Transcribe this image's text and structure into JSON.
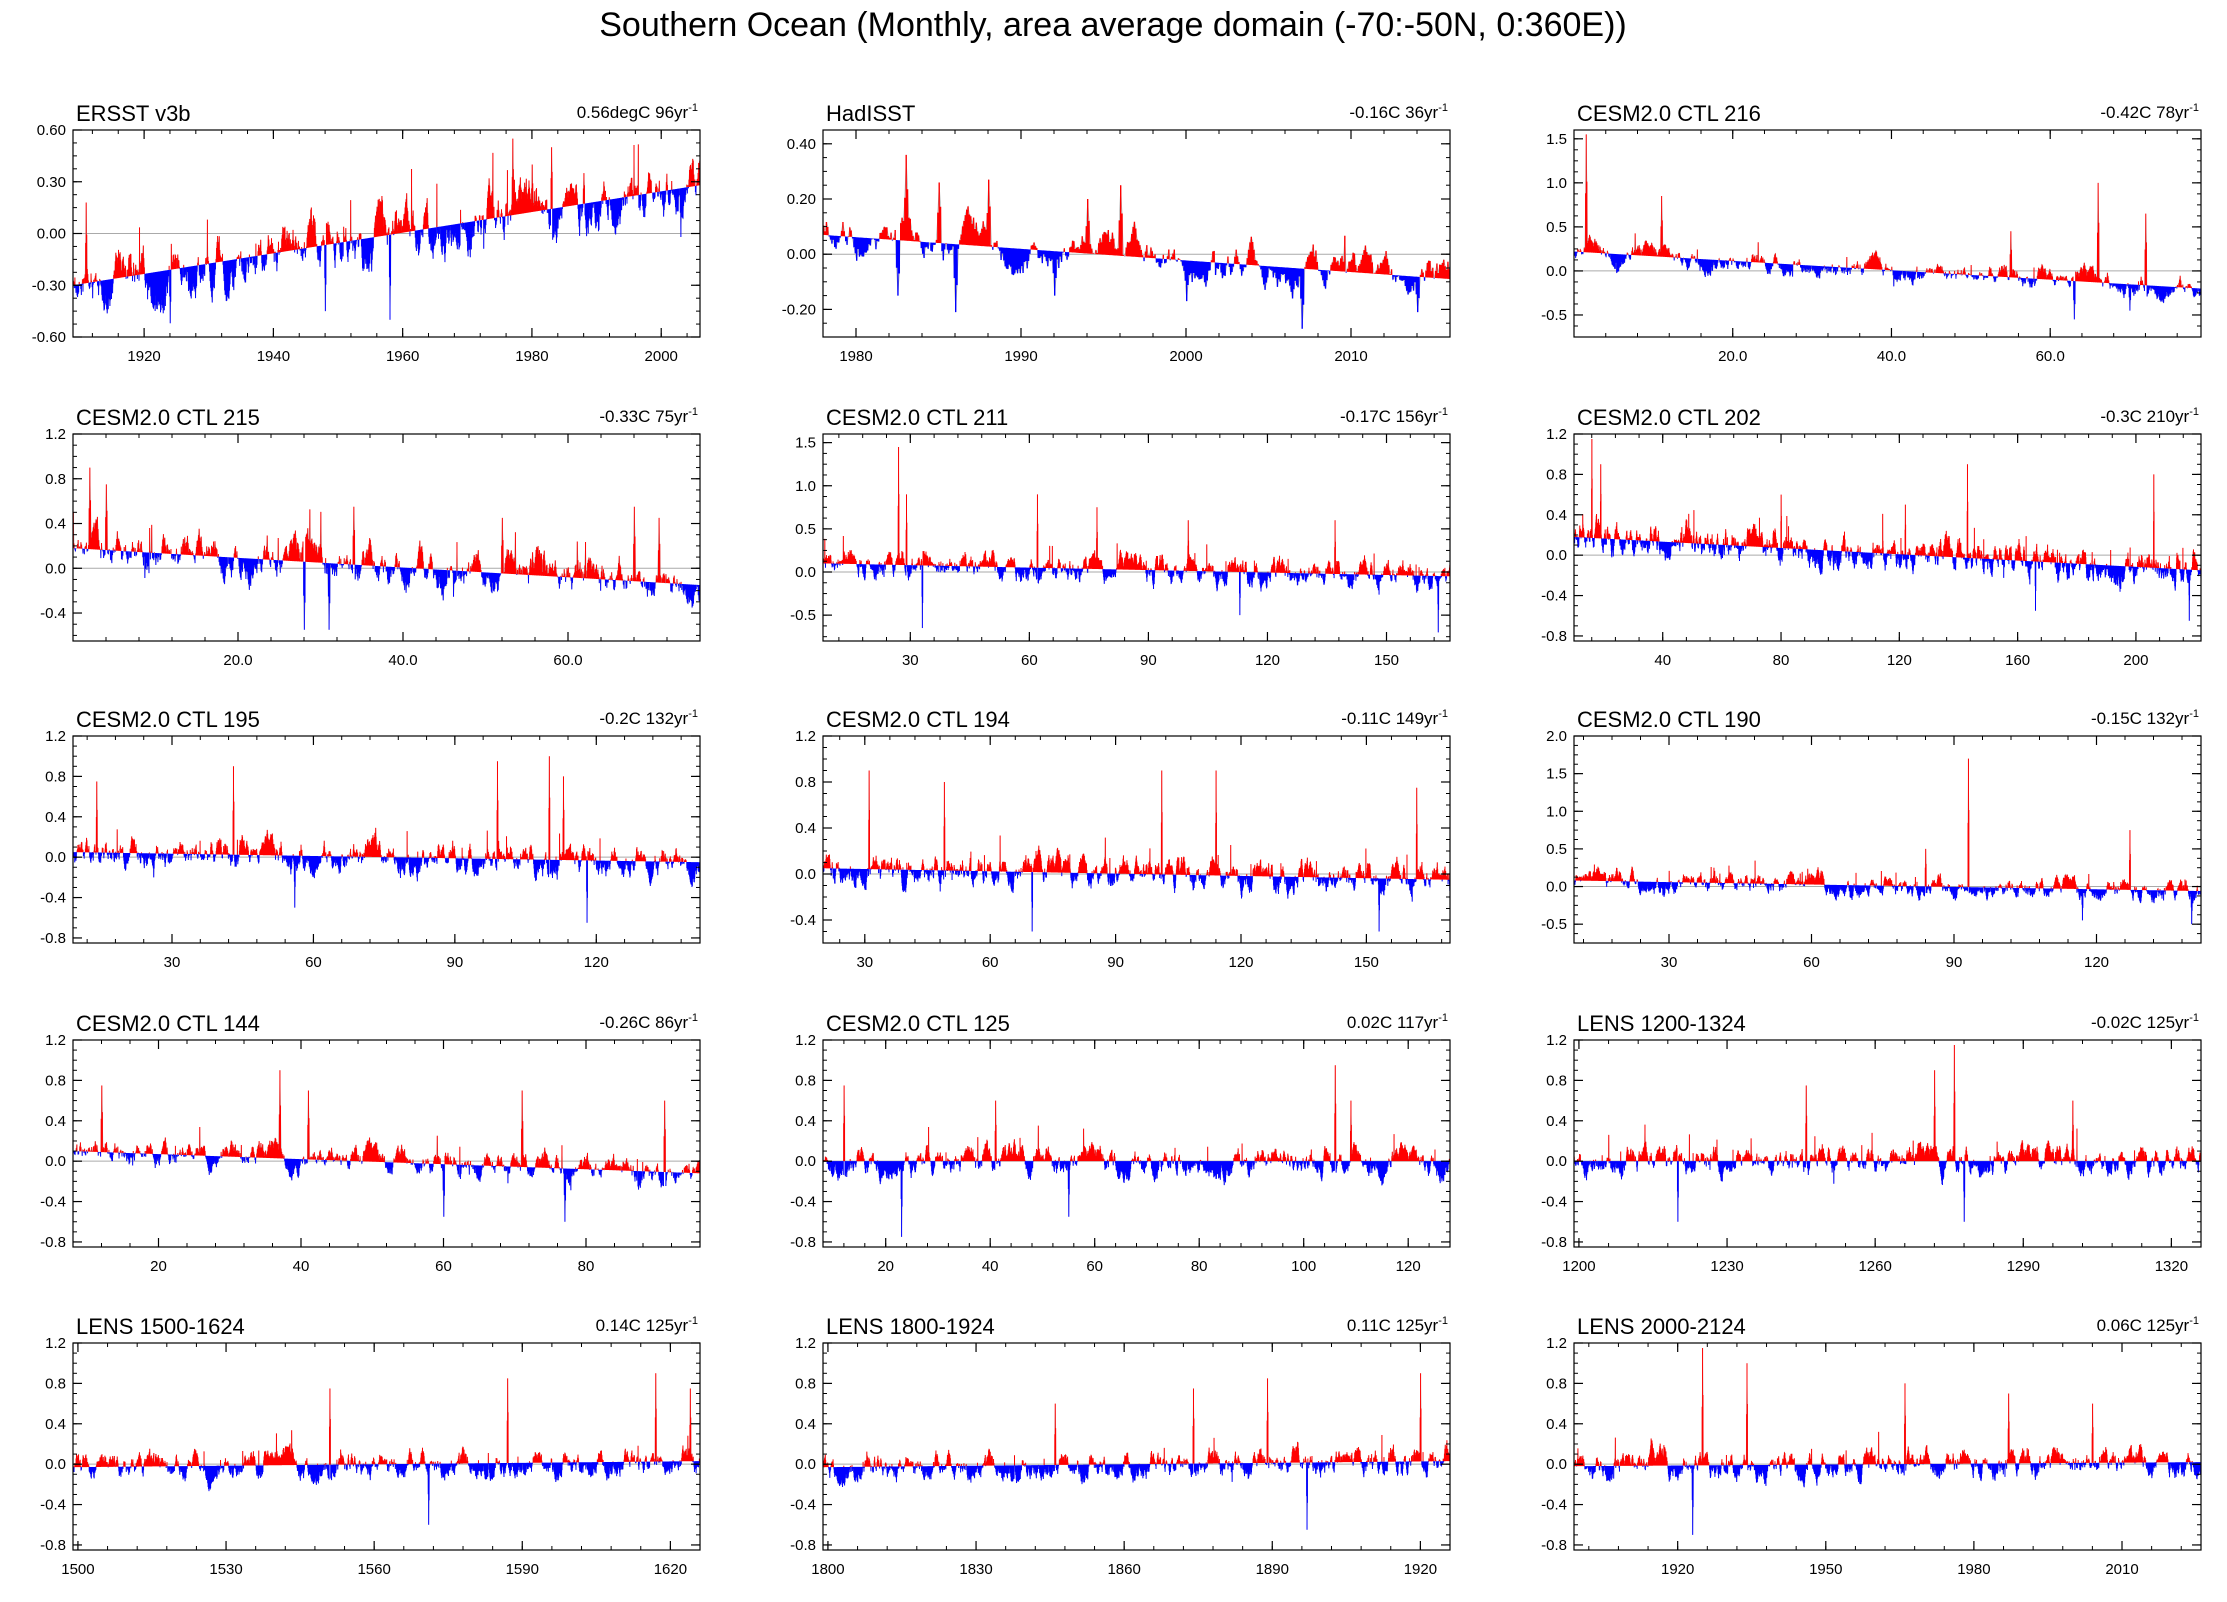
{
  "figure": {
    "title": "Southern Ocean (Monthly, area average domain (-70:-50N, 0:360E))"
  },
  "colors": {
    "positive": "#ff0000",
    "negative": "#0000ff",
    "reference": "#aaaaaa",
    "axis": "#000000"
  },
  "chart_data": [
    {
      "type": "area",
      "title": "ERSST v3b",
      "trend_value": "0.56degC",
      "trend_period": "96yr",
      "trend_unit": "-1",
      "x_range": [
        1909,
        2006
      ],
      "ylim": [
        -0.6,
        0.6
      ],
      "yticks": [
        -0.6,
        -0.3,
        0,
        0.3,
        0.6
      ],
      "ytick_labels": [
        "-0.60",
        "-0.30",
        "0.00",
        "0.30",
        "0.60"
      ],
      "xticks": [
        1920,
        1940,
        1960,
        1980,
        2000
      ],
      "xtick_labels": [
        "1920",
        "1940",
        "1960",
        "1980",
        "2000"
      ],
      "trend_line": [
        -0.3,
        0.28
      ],
      "amplitude": 0.16,
      "spikes": [
        [
          1911,
          0.18
        ],
        [
          1924,
          -0.52
        ],
        [
          1948,
          -0.45
        ],
        [
          1958,
          -0.5
        ],
        [
          1977,
          0.55
        ],
        [
          1980,
          0.4
        ],
        [
          1983,
          0.5
        ],
        [
          1988,
          0.35
        ],
        [
          2003,
          -0.02
        ]
      ]
    },
    {
      "type": "area",
      "title": "HadISST",
      "trend_value": "-0.16C",
      "trend_period": "36yr",
      "trend_unit": "-1",
      "x_range": [
        1978,
        2016
      ],
      "ylim": [
        -0.3,
        0.45
      ],
      "yticks": [
        -0.2,
        0,
        0.2,
        0.4
      ],
      "ytick_labels": [
        "-0.20",
        "0.00",
        "0.20",
        "0.40"
      ],
      "xticks": [
        1980,
        1990,
        2000,
        2010
      ],
      "xtick_labels": [
        "1980",
        "1990",
        "2000",
        "2010"
      ],
      "trend_line": [
        0.07,
        -0.09
      ],
      "amplitude": 0.08,
      "spikes": [
        [
          1983,
          0.36
        ],
        [
          1982.5,
          -0.15
        ],
        [
          1985,
          0.26
        ],
        [
          1986,
          -0.21
        ],
        [
          1988,
          0.27
        ],
        [
          1992,
          -0.15
        ],
        [
          1994,
          0.2
        ],
        [
          1996,
          0.25
        ],
        [
          2000,
          -0.17
        ],
        [
          2007,
          -0.27
        ],
        [
          2014,
          -0.21
        ]
      ]
    },
    {
      "type": "area",
      "title": "CESM2.0 CTL 216",
      "trend_value": "-0.42C",
      "trend_period": "78yr",
      "trend_unit": "-1",
      "x_range": [
        0,
        79
      ],
      "ylim": [
        -0.75,
        1.6
      ],
      "yticks": [
        -0.5,
        0,
        0.5,
        1,
        1.5
      ],
      "ytick_labels": [
        "-0.5",
        "0.0",
        "0.5",
        "1.0",
        "1.5"
      ],
      "xticks": [
        20,
        40,
        60
      ],
      "xtick_labels": [
        "20.0",
        "40.0",
        "60.0"
      ],
      "trend_line": [
        0.22,
        -0.2
      ],
      "amplitude": 0.12,
      "spikes": [
        [
          1.5,
          1.55
        ],
        [
          11,
          0.85
        ],
        [
          55,
          0.45
        ],
        [
          63,
          -0.55
        ],
        [
          66,
          1.0
        ],
        [
          70,
          -0.45
        ],
        [
          72,
          0.65
        ]
      ]
    },
    {
      "type": "area",
      "title": "CESM2.0 CTL 215",
      "trend_value": "-0.33C",
      "trend_period": "75yr",
      "trend_unit": "-1",
      "x_range": [
        0,
        76
      ],
      "ylim": [
        -0.65,
        1.2
      ],
      "yticks": [
        -0.4,
        0,
        0.4,
        0.8,
        1.2
      ],
      "ytick_labels": [
        "-0.4",
        "0.0",
        "0.4",
        "0.8",
        "1.2"
      ],
      "xticks": [
        20,
        40,
        60
      ],
      "xtick_labels": [
        "20.0",
        "40.0",
        "60.0"
      ],
      "trend_line": [
        0.18,
        -0.15
      ],
      "amplitude": 0.18,
      "spikes": [
        [
          2,
          0.9
        ],
        [
          4,
          0.75
        ],
        [
          28,
          -0.55
        ],
        [
          31,
          -0.55
        ],
        [
          34,
          0.55
        ],
        [
          52,
          0.45
        ],
        [
          68,
          0.55
        ],
        [
          71,
          0.45
        ]
      ]
    },
    {
      "type": "area",
      "title": "CESM2.0 CTL 211",
      "trend_value": "-0.17C",
      "trend_period": "156yr",
      "trend_unit": "-1",
      "x_range": [
        8,
        166
      ],
      "ylim": [
        -0.8,
        1.6
      ],
      "yticks": [
        -0.5,
        0,
        0.5,
        1,
        1.5
      ],
      "ytick_labels": [
        "-0.5",
        "0.0",
        "0.5",
        "1.0",
        "1.5"
      ],
      "xticks": [
        30,
        60,
        90,
        120,
        150
      ],
      "xtick_labels": [
        "30",
        "60",
        "90",
        "120",
        "150"
      ],
      "trend_line": [
        0.1,
        -0.05
      ],
      "amplitude": 0.14,
      "spikes": [
        [
          27,
          1.45
        ],
        [
          29,
          0.9
        ],
        [
          33,
          -0.65
        ],
        [
          62,
          0.9
        ],
        [
          77,
          0.75
        ],
        [
          100,
          0.6
        ],
        [
          113,
          -0.5
        ],
        [
          137,
          0.6
        ],
        [
          163,
          -0.7
        ]
      ]
    },
    {
      "type": "area",
      "title": "CESM2.0 CTL 202",
      "trend_value": "-0.3C",
      "trend_period": "210yr",
      "trend_unit": "-1",
      "x_range": [
        10,
        222
      ],
      "ylim": [
        -0.85,
        1.2
      ],
      "yticks": [
        -0.8,
        -0.4,
        0,
        0.4,
        0.8,
        1.2
      ],
      "ytick_labels": [
        "-0.8",
        "-0.4",
        "0.0",
        "0.4",
        "0.8",
        "1.2"
      ],
      "xticks": [
        40,
        80,
        120,
        160,
        200
      ],
      "xtick_labels": [
        "40",
        "80",
        "120",
        "160",
        "200"
      ],
      "trend_line": [
        0.18,
        -0.15
      ],
      "amplitude": 0.14,
      "spikes": [
        [
          16,
          1.15
        ],
        [
          19,
          0.9
        ],
        [
          80,
          0.6
        ],
        [
          122,
          0.5
        ],
        [
          143,
          0.9
        ],
        [
          166,
          -0.55
        ],
        [
          206,
          0.8
        ],
        [
          218,
          -0.65
        ]
      ]
    },
    {
      "type": "area",
      "title": "CESM2.0 CTL 195",
      "trend_value": "-0.2C",
      "trend_period": "132yr",
      "trend_unit": "-1",
      "x_range": [
        9,
        142
      ],
      "ylim": [
        -0.85,
        1.2
      ],
      "yticks": [
        -0.8,
        -0.4,
        0,
        0.4,
        0.8,
        1.2
      ],
      "ytick_labels": [
        "-0.8",
        "-0.4",
        "0.0",
        "0.4",
        "0.8",
        "1.2"
      ],
      "xticks": [
        30,
        60,
        90,
        120
      ],
      "xtick_labels": [
        "30",
        "60",
        "90",
        "120"
      ],
      "trend_line": [
        0.05,
        -0.05
      ],
      "amplitude": 0.14,
      "spikes": [
        [
          14,
          0.75
        ],
        [
          43,
          0.9
        ],
        [
          56,
          -0.5
        ],
        [
          99,
          0.95
        ],
        [
          110,
          1.0
        ],
        [
          118,
          -0.65
        ],
        [
          113,
          0.8
        ]
      ]
    },
    {
      "type": "area",
      "title": "CESM2.0 CTL 194",
      "trend_value": "-0.11C",
      "trend_period": "149yr",
      "trend_unit": "-1",
      "x_range": [
        20,
        170
      ],
      "ylim": [
        -0.6,
        1.2
      ],
      "yticks": [
        -0.4,
        0,
        0.4,
        0.8,
        1.2
      ],
      "ytick_labels": [
        "-0.4",
        "0.0",
        "0.4",
        "0.8",
        "1.2"
      ],
      "xticks": [
        30,
        60,
        90,
        120,
        150
      ],
      "xtick_labels": [
        "30",
        "60",
        "90",
        "120",
        "150"
      ],
      "trend_line": [
        0.05,
        -0.05
      ],
      "amplitude": 0.12,
      "spikes": [
        [
          31,
          0.9
        ],
        [
          49,
          0.8
        ],
        [
          70,
          -0.5
        ],
        [
          101,
          0.9
        ],
        [
          114,
          0.9
        ],
        [
          153,
          -0.5
        ],
        [
          162,
          0.75
        ]
      ]
    },
    {
      "type": "area",
      "title": "CESM2.0 CTL 190",
      "trend_value": "-0.15C",
      "trend_period": "132yr",
      "trend_unit": "-1",
      "x_range": [
        10,
        142
      ],
      "ylim": [
        -0.75,
        2.0
      ],
      "yticks": [
        -0.5,
        0,
        0.5,
        1,
        1.5,
        2
      ],
      "ytick_labels": [
        "-0.5",
        "0.0",
        "0.5",
        "1.0",
        "1.5",
        "2.0"
      ],
      "xticks": [
        30,
        60,
        90,
        120
      ],
      "xtick_labels": [
        "30",
        "60",
        "90",
        "120"
      ],
      "trend_line": [
        0.08,
        -0.06
      ],
      "amplitude": 0.13,
      "spikes": [
        [
          93,
          1.7
        ],
        [
          84,
          0.5
        ],
        [
          127,
          0.75
        ],
        [
          117,
          -0.45
        ],
        [
          140,
          -0.5
        ]
      ]
    },
    {
      "type": "area",
      "title": "CESM2.0 CTL 144",
      "trend_value": "-0.26C",
      "trend_period": "86yr",
      "trend_unit": "-1",
      "x_range": [
        8,
        96
      ],
      "ylim": [
        -0.85,
        1.2
      ],
      "yticks": [
        -0.8,
        -0.4,
        0,
        0.4,
        0.8,
        1.2
      ],
      "ytick_labels": [
        "-0.8",
        "-0.4",
        "0.0",
        "0.4",
        "0.8",
        "1.2"
      ],
      "xticks": [
        20,
        40,
        60,
        80
      ],
      "xtick_labels": [
        "20",
        "40",
        "60",
        "80"
      ],
      "trend_line": [
        0.1,
        -0.12
      ],
      "amplitude": 0.13,
      "spikes": [
        [
          12,
          0.75
        ],
        [
          37,
          0.9
        ],
        [
          41,
          0.7
        ],
        [
          60,
          -0.55
        ],
        [
          71,
          0.7
        ],
        [
          77,
          -0.6
        ],
        [
          91,
          0.6
        ]
      ]
    },
    {
      "type": "area",
      "title": "CESM2.0 CTL 125",
      "trend_value": "0.02C",
      "trend_period": "117yr",
      "trend_unit": "-1",
      "x_range": [
        8,
        128
      ],
      "ylim": [
        -0.85,
        1.2
      ],
      "yticks": [
        -0.8,
        -0.4,
        0,
        0.4,
        0.8,
        1.2
      ],
      "ytick_labels": [
        "-0.8",
        "-0.4",
        "0.0",
        "0.4",
        "0.8",
        "1.2"
      ],
      "xticks": [
        20,
        40,
        60,
        80,
        100,
        120
      ],
      "xtick_labels": [
        "20",
        "40",
        "60",
        "80",
        "100",
        "120"
      ],
      "trend_line": [
        0,
        0
      ],
      "amplitude": 0.13,
      "spikes": [
        [
          12,
          0.75
        ],
        [
          23,
          -0.75
        ],
        [
          41,
          0.6
        ],
        [
          55,
          -0.55
        ],
        [
          106,
          0.95
        ],
        [
          109,
          0.6
        ]
      ]
    },
    {
      "type": "area",
      "title": "LENS 1200-1324",
      "trend_value": "-0.02C",
      "trend_period": "125yr",
      "trend_unit": "-1",
      "x_range": [
        1199,
        1326
      ],
      "ylim": [
        -0.85,
        1.2
      ],
      "yticks": [
        -0.8,
        -0.4,
        0,
        0.4,
        0.8,
        1.2
      ],
      "ytick_labels": [
        "-0.8",
        "-0.4",
        "0.0",
        "0.4",
        "0.8",
        "1.2"
      ],
      "xticks": [
        1200,
        1230,
        1260,
        1290,
        1320
      ],
      "xtick_labels": [
        "1200",
        "1230",
        "1260",
        "1290",
        "1320"
      ],
      "trend_line": [
        0,
        0
      ],
      "amplitude": 0.13,
      "spikes": [
        [
          1220,
          -0.6
        ],
        [
          1246,
          0.75
        ],
        [
          1276,
          1.15
        ],
        [
          1272,
          0.9
        ],
        [
          1278,
          -0.6
        ],
        [
          1300,
          0.6
        ]
      ]
    },
    {
      "type": "area",
      "title": "LENS 1500-1624",
      "trend_value": "0.14C",
      "trend_period": "125yr",
      "trend_unit": "-1",
      "x_range": [
        1499,
        1626
      ],
      "ylim": [
        -0.85,
        1.2
      ],
      "yticks": [
        -0.8,
        -0.4,
        0,
        0.4,
        0.8,
        1.2
      ],
      "ytick_labels": [
        "-0.8",
        "-0.4",
        "0.0",
        "0.4",
        "0.8",
        "1.2"
      ],
      "xticks": [
        1500,
        1530,
        1560,
        1590,
        1620
      ],
      "xtick_labels": [
        "1500",
        "1530",
        "1560",
        "1590",
        "1620"
      ],
      "trend_line": [
        -0.03,
        0.03
      ],
      "amplitude": 0.13,
      "spikes": [
        [
          1551,
          0.75
        ],
        [
          1571,
          -0.6
        ],
        [
          1587,
          0.85
        ],
        [
          1617,
          0.9
        ],
        [
          1624,
          0.75
        ]
      ]
    },
    {
      "type": "area",
      "title": "LENS 1800-1924",
      "trend_value": "0.11C",
      "trend_period": "125yr",
      "trend_unit": "-1",
      "x_range": [
        1799,
        1926
      ],
      "ylim": [
        -0.85,
        1.2
      ],
      "yticks": [
        -0.8,
        -0.4,
        0,
        0.4,
        0.8,
        1.2
      ],
      "ytick_labels": [
        "-0.8",
        "-0.4",
        "0.0",
        "0.4",
        "0.8",
        "1.2"
      ],
      "xticks": [
        1800,
        1830,
        1860,
        1890,
        1920
      ],
      "xtick_labels": [
        "1800",
        "1830",
        "1860",
        "1890",
        "1920"
      ],
      "trend_line": [
        -0.03,
        0.03
      ],
      "amplitude": 0.13,
      "spikes": [
        [
          1846,
          0.6
        ],
        [
          1874,
          0.75
        ],
        [
          1889,
          0.85
        ],
        [
          1897,
          -0.65
        ],
        [
          1920,
          0.9
        ]
      ]
    },
    {
      "type": "area",
      "title": "LENS 2000-2124",
      "trend_value": "0.06C",
      "trend_period": "125yr",
      "trend_unit": "-1",
      "x_range": [
        1899,
        2026
      ],
      "ylim": [
        -0.85,
        1.2
      ],
      "yticks": [
        -0.8,
        -0.4,
        0,
        0.4,
        0.8,
        1.2
      ],
      "ytick_labels": [
        "-0.8",
        "-0.4",
        "0.0",
        "0.4",
        "0.8",
        "1.2"
      ],
      "xticks": [
        1920,
        1950,
        1980,
        2010
      ],
      "xtick_labels": [
        "1920",
        "1950",
        "1980",
        "2010"
      ],
      "trend_line": [
        -0.02,
        0.02
      ],
      "amplitude": 0.13,
      "spikes": [
        [
          1925,
          1.15
        ],
        [
          1923,
          -0.7
        ],
        [
          1934,
          1.0
        ],
        [
          1966,
          0.8
        ],
        [
          1987,
          0.7
        ],
        [
          2004,
          0.6
        ]
      ]
    }
  ]
}
